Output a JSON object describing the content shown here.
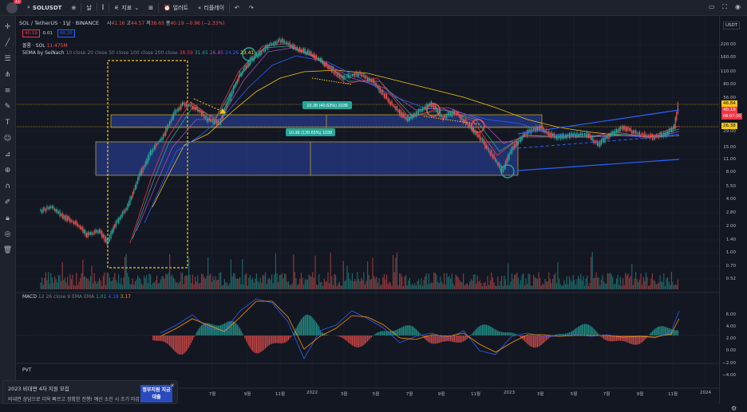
{
  "topbar": {
    "avatar_badge": "11",
    "symbol": "SOLUSDT",
    "interval": "날",
    "indicators_label": "지표",
    "alert_label": "얼러트",
    "replay_label": "리플레이"
  },
  "legend": {
    "symbol_line": "SOL / TetherUS · 1날 · BINANCE",
    "o_label": "시",
    "o_value": "41.16",
    "h_label": "고",
    "h_value": "44.57",
    "l_label": "저",
    "l_value": "38.65",
    "c_label": "종",
    "c_value": "40.19",
    "change": "−0.96 (−2.33%)",
    "bid": "40.19",
    "spread": "0.01",
    "ask": "40.20",
    "volume_label": "볼륨 · SOL",
    "volume_value": "11.475M",
    "ema_label": "5EMA by SeiNach",
    "ema_params": "10 close 20 close 50 close 100 close 200 close",
    "ema_values": [
      "38.59",
      "31.65",
      "26.85",
      "24.26",
      "23.41"
    ],
    "ema_colors": [
      "#f23645",
      "#26a69a",
      "#ab47bc",
      "#2962ff",
      "#ffeb3b"
    ]
  },
  "measure": {
    "upper_label": "10.38 (40.63%) 1038",
    "lower_label": "10.38 (139.65%) 1038"
  },
  "price_axis": {
    "currency": "USDT",
    "ticks": [
      "220.00",
      "160.00",
      "110.00",
      "80.00",
      "56.00",
      "40.19",
      "29.00",
      "21.00",
      "15.00",
      "11.00",
      "8.00",
      "5.50",
      "4.00",
      "2.80",
      "2.00",
      "1.40",
      "1.00",
      "0.70",
      "0.52"
    ],
    "tag_high": "46.84",
    "tag_last": "40.19",
    "tag_countdown": "06:07:10",
    "tag_low": "26.38"
  },
  "macd": {
    "label": "MACD",
    "params": "12 26 close 9 EMA EMA",
    "values": [
      "1.01",
      "4.18",
      "3.17"
    ],
    "ticks": [
      "6.00",
      "4.00",
      "2.00",
      "0.00",
      "−2.00",
      "−4.00"
    ]
  },
  "pvt": {
    "label": "PVT"
  },
  "time_axis": [
    "7월",
    "9월",
    "11월",
    "2022",
    "3월",
    "5월",
    "7월",
    "9월",
    "11월",
    "2023",
    "3월",
    "5월",
    "7월",
    "9월",
    "11월",
    "2024"
  ],
  "ad": {
    "title": "2023 비대면 4차 지원 모집",
    "body": "비대면 상담으로 더욱 빠르고 정확한 진행! 예산 소진 시 조기 마감",
    "image_text": "정부지원 지금대출"
  },
  "colors": {
    "bg": "#131722",
    "candle_up": "#26a69a",
    "candle_down": "#ef5350",
    "box_fill": "#1e3a8a",
    "trend": "#2962ff",
    "annot_yellow": "#f5c518"
  }
}
